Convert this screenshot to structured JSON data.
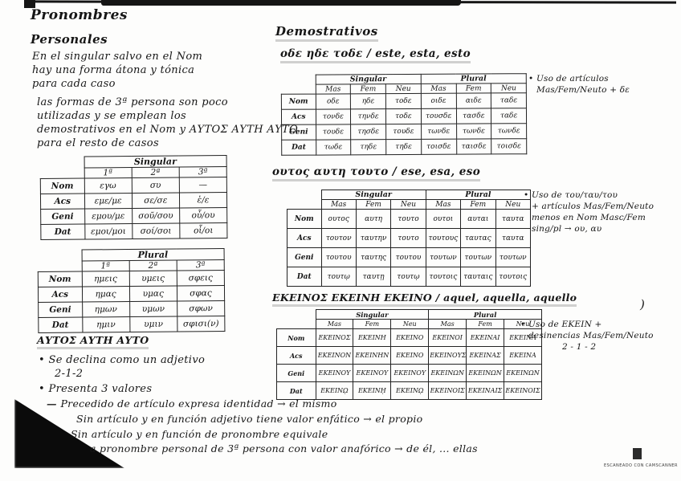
{
  "scan": {
    "watermark": "Escaneado con CamScanner",
    "corner_mark": ")"
  },
  "left": {
    "title": "Pronombres",
    "subtitle": "Personales",
    "para1": [
      "En el singular salvo en el Nom",
      "hay una forma átona y tónica",
      "para cada caso"
    ],
    "para2": [
      "las formas de 3ª persona son poco",
      "utilizadas y se emplean los",
      "demostrativos en el Nom y ΑΥΤΟΣ ΑΥΤΗ ΑΥΤΟ",
      "para el resto de casos"
    ],
    "singular_table": {
      "groups": [
        "Singular"
      ],
      "cols": [
        "1ª",
        "2ª",
        "3ª"
      ],
      "rows": [
        {
          "label": "Nom",
          "cells": [
            "εγω",
            "συ",
            "—"
          ]
        },
        {
          "label": "Acs",
          "cells": [
            "εμε/με",
            "σε/σε",
            "ἑ/ε"
          ]
        },
        {
          "label": "Geni",
          "cells": [
            "εμου/με",
            "σοῦ/σου",
            "οὗ/ου"
          ]
        },
        {
          "label": "Dat",
          "cells": [
            "εμοι/μοι",
            "σοί/σοι",
            "οἷ/οι"
          ]
        }
      ]
    },
    "plural_table": {
      "groups": [
        "Plural"
      ],
      "cols": [
        "1ª",
        "2ª",
        "3ª"
      ],
      "rows": [
        {
          "label": "Nom",
          "cells": [
            "ημεις",
            "υμεις",
            "σφεις"
          ]
        },
        {
          "label": "Acs",
          "cells": [
            "ημας",
            "υμας",
            "σφας"
          ]
        },
        {
          "label": "Geni",
          "cells": [
            "ημων",
            "υμων",
            "σφων"
          ]
        },
        {
          "label": "Dat",
          "cells": [
            "ημιν",
            "υμιν",
            "σφισι(ν)"
          ]
        }
      ]
    },
    "autos": {
      "heading": "ΑΥΤΟΣ ΑΥΤΗ ΑΥΤΟ",
      "bullet1": "Se declina como un adjetivo",
      "bullet1b": "2-1-2",
      "bullet2": "Presenta 3 valores",
      "sub1": "Precedido de artículo expresa identidad → el mismo",
      "sub2": "Sin artículo y en función adjetivo tiene valor enfático → el propio",
      "sub3a": "Sin artículo y en función de pronombre equivale",
      "sub3b": "a pronombre personal de 3ª persona con valor anafórico → de él, ... ellas"
    }
  },
  "right": {
    "title": "Demostrativos",
    "sec1": {
      "heading": "οδε ηδε τοδε / este, esta, esto",
      "table": {
        "groups": [
          "Singular",
          "Plural"
        ],
        "cols": [
          "Mas",
          "Fem",
          "Neu",
          "Mas",
          "Fem",
          "Neu"
        ],
        "rows": [
          {
            "label": "Nom",
            "cells": [
              "οδε",
              "ηδε",
              "τοδε",
              "οιδε",
              "αιδε",
              "ταδε"
            ]
          },
          {
            "label": "Acs",
            "cells": [
              "τονδε",
              "τηνδε",
              "τοδε",
              "τουσδε",
              "τασδε",
              "ταδε"
            ]
          },
          {
            "label": "Geni",
            "cells": [
              "τουδε",
              "τησδε",
              "τουδε",
              "τωνδε",
              "τωνδε",
              "τωνδε"
            ]
          },
          {
            "label": "Dat",
            "cells": [
              "τωδε",
              "τηδε",
              "τηδε",
              "τοισδε",
              "ταισδε",
              "τοισδε"
            ]
          }
        ]
      },
      "note": [
        "Uso de artículos",
        "Mas/Fem/Neuto + δε"
      ]
    },
    "sec2": {
      "heading": "ουτος αυτη τουτο / ese, esa, eso",
      "table": {
        "groups": [
          "Singular",
          "Plural"
        ],
        "cols": [
          "Mas",
          "Fem",
          "Neu",
          "Mas",
          "Fem",
          "Neu"
        ],
        "rows": [
          {
            "label": "Nom",
            "cells": [
              "ουτος",
              "αυτη",
              "τουτο",
              "ουτοι",
              "αυται",
              "ταυτα"
            ]
          },
          {
            "label": "Acs",
            "cells": [
              "τουτον",
              "ταυτην",
              "τουτο",
              "τουτους",
              "ταυτας",
              "ταυτα"
            ]
          },
          {
            "label": "Geni",
            "cells": [
              "τουτου",
              "ταυτης",
              "τουτου",
              "τουτων",
              "τουτων",
              "τουτων"
            ]
          },
          {
            "label": "Dat",
            "cells": [
              "τουτῳ",
              "ταυτῃ",
              "τουτῳ",
              "τουτοις",
              "ταυταις",
              "τουτοις"
            ]
          }
        ]
      },
      "note": [
        "Uso de του/ταυ/του",
        "+ artículos Mas/Fem/Neuto",
        "menos en Nom Masc/Fem",
        "sing/pl → ου, αυ"
      ]
    },
    "sec3": {
      "heading": "ΕΚΕΙΝΟΣ ΕΚΕΙΝΗ ΕΚΕΙΝΟ / aquel, aquella, aquello",
      "table": {
        "groups": [
          "Singular",
          "Plural"
        ],
        "cols": [
          "Mas",
          "Fem",
          "Neu",
          "Mas",
          "Fem",
          "Neu"
        ],
        "rows": [
          {
            "label": "Nom",
            "cells": [
              "ΕΚΕΙΝΟΣ",
              "ΕΚΕΙΝΗ",
              "ΕΚΕΙΝΟ",
              "ΕΚΕΙΝΟΙ",
              "ΕΚΕΙΝΑΙ",
              "ΕΚΕΙΝΑ"
            ]
          },
          {
            "label": "Acs",
            "cells": [
              "ΕΚΕΙΝΟΝ",
              "ΕΚΕΙΝΗΝ",
              "ΕΚΕΙΝΟ",
              "ΕΚΕΙΝΟΥΣ",
              "ΕΚΕΙΝΑΣ",
              "ΕΚΕΙΝΑ"
            ]
          },
          {
            "label": "Geni",
            "cells": [
              "ΕΚΕΙΝΟΥ",
              "ΕΚΕΙΝΟΥ",
              "ΕΚΕΙΝΟΥ",
              "ΕΚΕΙΝΩΝ",
              "ΕΚΕΙΝΩΝ",
              "ΕΚΕΙΝΩΝ"
            ]
          },
          {
            "label": "Dat",
            "cells": [
              "ΕΚΕΙΝῼ",
              "ΕΚΕΙΝῌ",
              "ΕΚΕΙΝῼ",
              "ΕΚΕΙΝΟΙΣ",
              "ΕΚΕΙΝΑΙΣ",
              "ΕΚΕΙΝΟΙΣ"
            ]
          }
        ]
      },
      "note": [
        "Uso de ΕΚΕΙΝ +",
        "desinencias Mas/Fem/Neuto",
        "2 - 1 - 2"
      ]
    }
  }
}
